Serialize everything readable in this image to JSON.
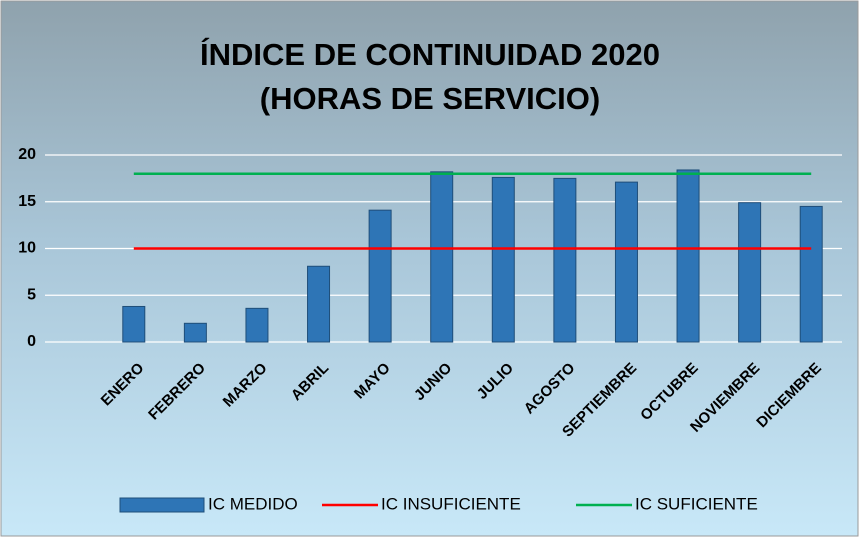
{
  "chart_data": {
    "type": "bar",
    "title": "ÍNDICE DE CONTINUIDAD 2020",
    "subtitle": "(HORAS DE SERVICIO)",
    "categories": [
      "ENERO",
      "FEBRERO",
      "MARZO",
      "ABRIL",
      "MAYO",
      "JUNIO",
      "JULIO",
      "AGOSTO",
      "SEPTIEMBRE",
      "OCTUBRE",
      "NOVIEMBRE",
      "DICIEMBRE"
    ],
    "series": [
      {
        "name": "IC MEDIDO",
        "type": "bar",
        "color": "#2e75b6",
        "values": [
          3.8,
          2.0,
          3.6,
          8.1,
          14.1,
          18.2,
          17.6,
          17.5,
          17.1,
          18.4,
          14.9,
          14.5
        ]
      },
      {
        "name": "IC INSUFICIENTE",
        "type": "line",
        "color": "#ff0000",
        "values": [
          10,
          10,
          10,
          10,
          10,
          10,
          10,
          10,
          10,
          10,
          10,
          10
        ]
      },
      {
        "name": "IC SUFICIENTE",
        "type": "line",
        "color": "#00b050",
        "values": [
          18,
          18,
          18,
          18,
          18,
          18,
          18,
          18,
          18,
          18,
          18,
          18
        ]
      }
    ],
    "ylim": [
      0,
      20
    ],
    "yticks": [
      0,
      5,
      10,
      15,
      20
    ],
    "grid": true,
    "legend": "bottom"
  }
}
